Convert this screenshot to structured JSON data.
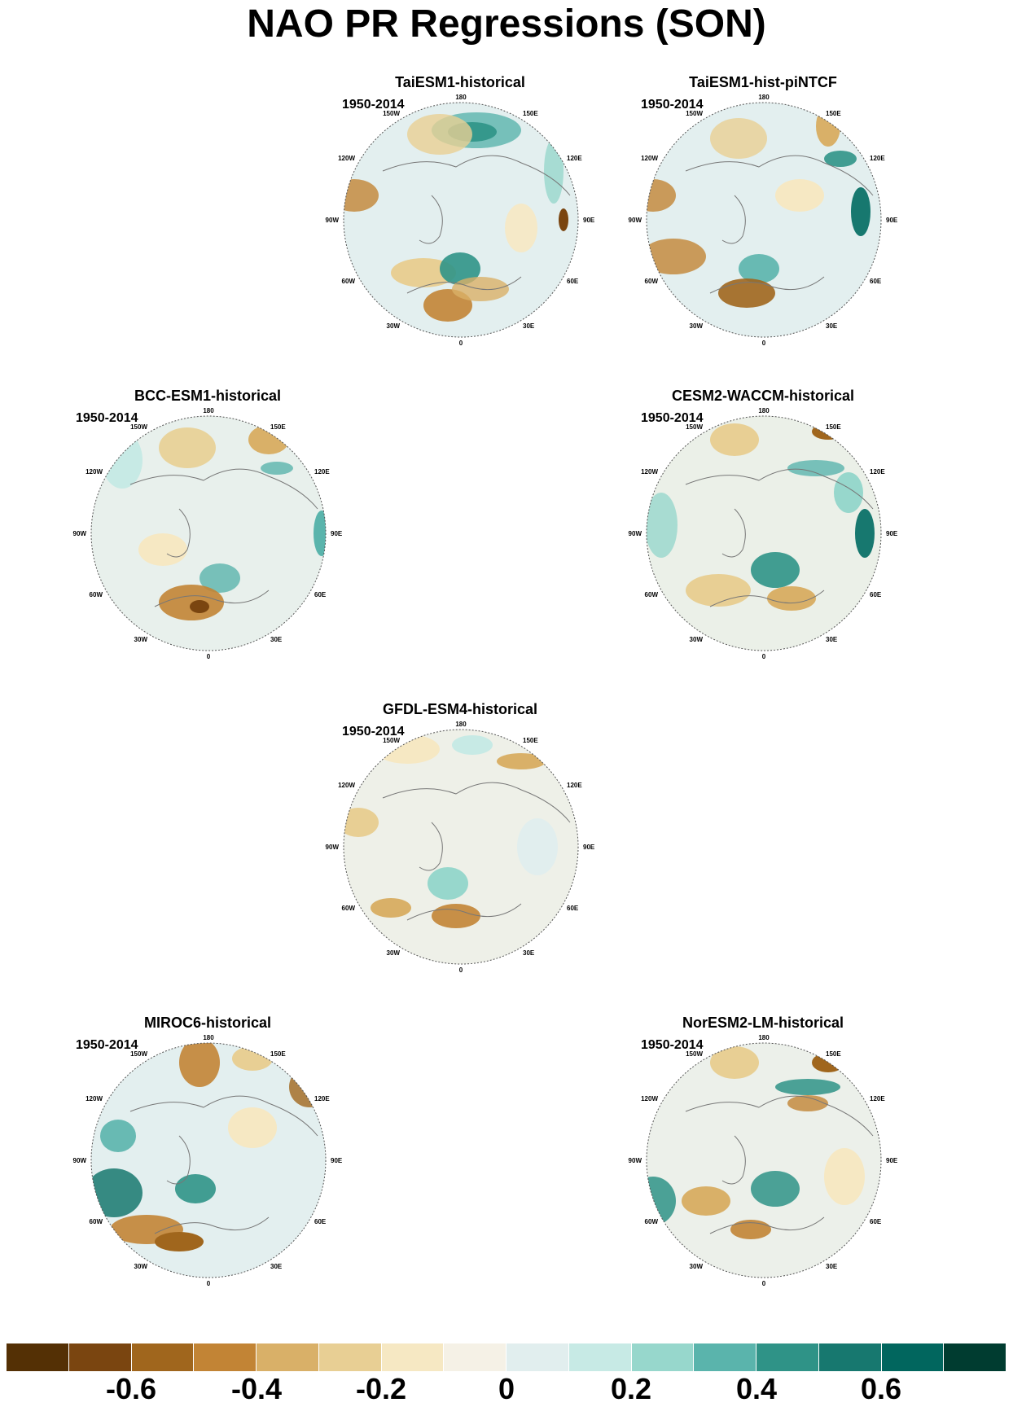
{
  "title": "NAO PR Regressions (SON)",
  "longitude_labels": [
    "180",
    "150E",
    "120E",
    "90E",
    "60E",
    "30E",
    "0",
    "30W",
    "60W",
    "90W",
    "120W",
    "150W"
  ],
  "panels": [
    {
      "id": "taiesm1-historical",
      "title": "TaiESM1-historical",
      "period": "1950-2014"
    },
    {
      "id": "taiesm1-hist-pintcf",
      "title": "TaiESM1-hist-piNTCF",
      "period": "1950-2014"
    },
    {
      "id": "bcc-esm1-historical",
      "title": "BCC-ESM1-historical",
      "period": "1950-2014"
    },
    {
      "id": "cesm2-waccm-historical",
      "title": "CESM2-WACCM-historical",
      "period": "1950-2014"
    },
    {
      "id": "gfdl-esm4-historical",
      "title": "GFDL-ESM4-historical",
      "period": "1950-2014"
    },
    {
      "id": "miroc6-historical",
      "title": "MIROC6-historical",
      "period": "1950-2014"
    },
    {
      "id": "noresm2-lm-historical",
      "title": "NorESM2-LM-historical",
      "period": "1950-2014"
    }
  ],
  "colorbar": {
    "colors": [
      "#543005",
      "#7a4510",
      "#a0661d",
      "#c28435",
      "#d9b068",
      "#e8cf94",
      "#f6e8c3",
      "#f5f1e6",
      "#e1eeee",
      "#c7eae5",
      "#97d7cc",
      "#5ab4ac",
      "#2f9387",
      "#17786f",
      "#01665e",
      "#003c30"
    ],
    "labels": [
      "-0.6",
      "-0.4",
      "-0.2",
      "0",
      "0.2",
      "0.4",
      "0.6"
    ]
  }
}
